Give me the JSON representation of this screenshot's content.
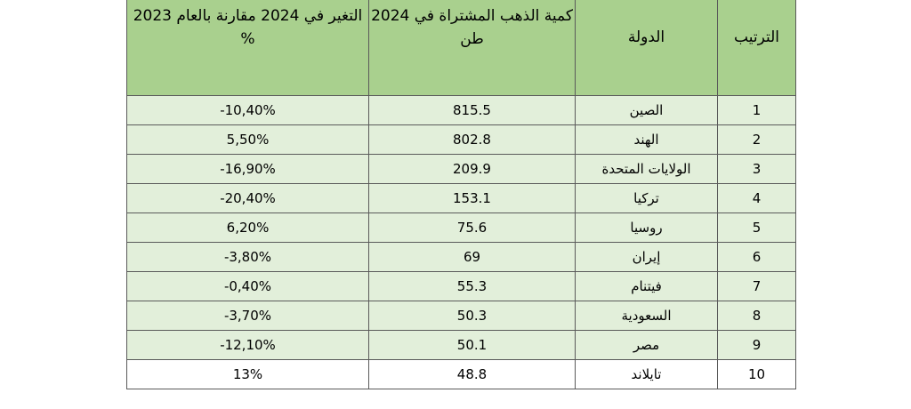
{
  "table": {
    "headers": {
      "rank": "الترتيب",
      "country": "الدولة",
      "quantity_line1": "كمية الذهب المشتراة في 2024",
      "quantity_line2": "طن",
      "change_line1": "التغير في 2024 مقارنة بالعام 2023",
      "change_line2": "%"
    },
    "rows": [
      {
        "rank": "1",
        "country": "الصين",
        "quantity": "815.5",
        "change": "-10,40%"
      },
      {
        "rank": "2",
        "country": "الهند",
        "quantity": "802.8",
        "change": "5,50%"
      },
      {
        "rank": "3",
        "country": "الولايات المتحدة",
        "quantity": "209.9",
        "change": "-16,90%"
      },
      {
        "rank": "4",
        "country": "تركيا",
        "quantity": "153.1",
        "change": "-20,40%"
      },
      {
        "rank": "5",
        "country": "روسيا",
        "quantity": "75.6",
        "change": "6,20%"
      },
      {
        "rank": "6",
        "country": "إيران",
        "quantity": "69",
        "change": "-3,80%"
      },
      {
        "rank": "7",
        "country": "فيتنام",
        "quantity": "55.3",
        "change": "-0,40%"
      },
      {
        "rank": "8",
        "country": "السعودية",
        "quantity": "50.3",
        "change": "-3,70%"
      },
      {
        "rank": "9",
        "country": "مصر",
        "quantity": "50.1",
        "change": "-12,10%"
      },
      {
        "rank": "10",
        "country": "تايلاند",
        "quantity": "48.8",
        "change": "13%"
      }
    ]
  }
}
